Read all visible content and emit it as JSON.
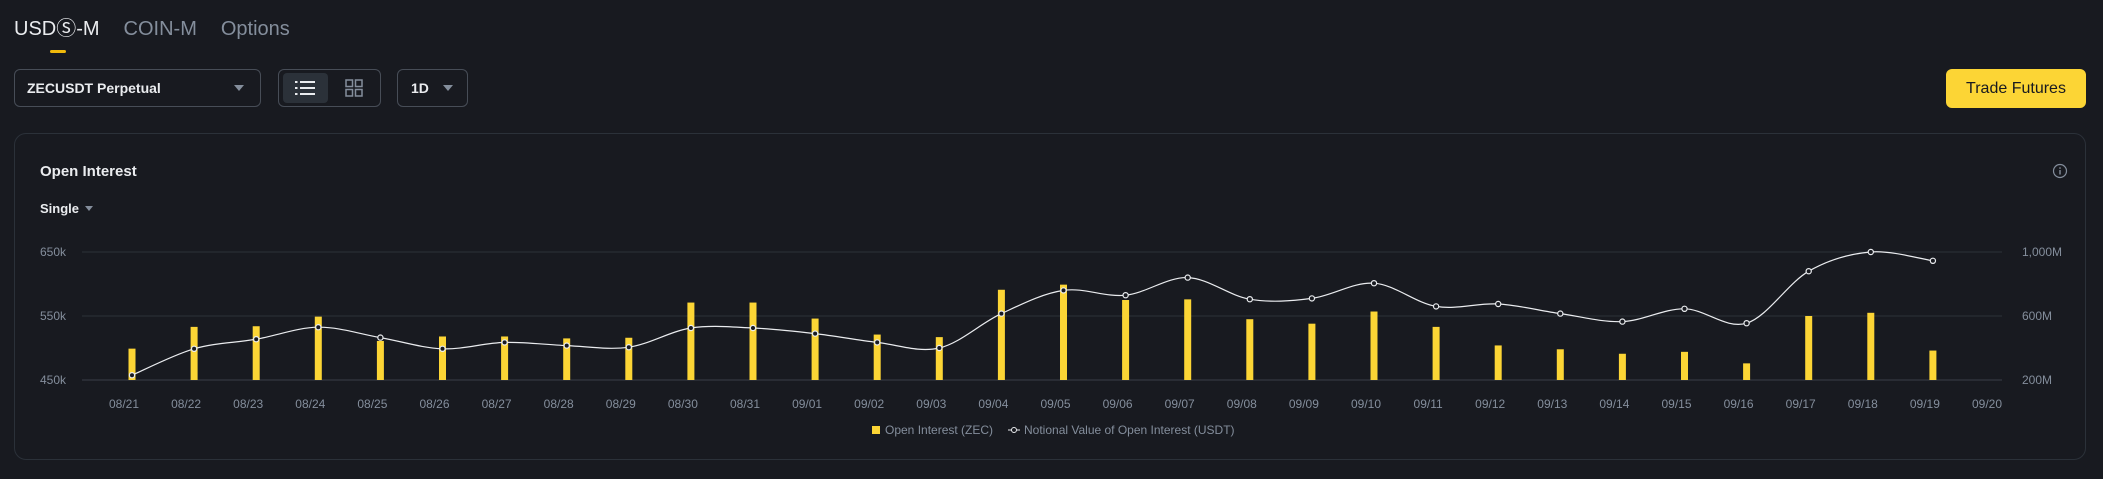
{
  "tabs": [
    {
      "label": "USDⓈ-M",
      "active": true
    },
    {
      "label": "COIN-M",
      "active": false
    },
    {
      "label": "Options",
      "active": false
    }
  ],
  "controls": {
    "symbol": "ZECUSDT Perpetual",
    "view_modes": [
      "list-icon",
      "grid-icon"
    ],
    "active_view": "list-icon",
    "interval": "1D"
  },
  "trade_button": "Trade Futures",
  "panel": {
    "title": "Open Interest",
    "mode": "Single",
    "info_icon": "info-icon"
  },
  "colors": {
    "bar": "#fcd535",
    "line": "#eaecef",
    "accent": "#f0b90b",
    "background": "#181a20"
  },
  "chart_data": {
    "type": "bar",
    "categories": [
      "08/21",
      "08/22",
      "08/23",
      "08/24",
      "08/25",
      "08/26",
      "08/27",
      "08/28",
      "08/29",
      "08/30",
      "08/31",
      "09/01",
      "09/02",
      "09/03",
      "09/04",
      "09/05",
      "09/06",
      "09/07",
      "09/08",
      "09/09",
      "09/10",
      "09/11",
      "09/12",
      "09/13",
      "09/14",
      "09/15",
      "09/16",
      "09/17",
      "09/18",
      "09/19"
    ],
    "x_tick_labels": [
      "08/21",
      "08/22",
      "08/23",
      "08/24",
      "08/25",
      "08/26",
      "08/27",
      "08/28",
      "08/29",
      "08/30",
      "08/31",
      "09/01",
      "09/02",
      "09/03",
      "09/04",
      "09/05",
      "09/06",
      "09/07",
      "09/08",
      "09/09",
      "09/10",
      "09/11",
      "09/12",
      "09/13",
      "09/14",
      "09/15",
      "09/16",
      "09/17",
      "09/18",
      "09/19",
      "09/20"
    ],
    "series": [
      {
        "name": "Open Interest (ZEC)",
        "axis": "left",
        "values": [
          499,
          533,
          534,
          549,
          511,
          518,
          518,
          515,
          516,
          571,
          571,
          546,
          521,
          517,
          591,
          599,
          575,
          576,
          545,
          538,
          557,
          533,
          504,
          498,
          491,
          494,
          476,
          550,
          555,
          496
        ]
      },
      {
        "name": "Notional Value of Open Interest (USDT)",
        "axis": "right",
        "type": "line",
        "values": [
          230,
          395,
          455,
          530,
          465,
          395,
          435,
          415,
          405,
          525,
          525,
          490,
          435,
          400,
          615,
          760,
          730,
          840,
          705,
          710,
          805,
          660,
          675,
          615,
          565,
          645,
          555,
          880,
          1000,
          945
        ]
      }
    ],
    "y_left": {
      "ticks": [
        "450k",
        "550k",
        "650k"
      ],
      "range": [
        450,
        650
      ],
      "unit": "k"
    },
    "y_right": {
      "ticks": [
        "200M",
        "600M",
        "1,000M"
      ],
      "range": [
        200,
        1000
      ],
      "unit": "M"
    },
    "grid": true,
    "legend_position": "bottom-center"
  }
}
